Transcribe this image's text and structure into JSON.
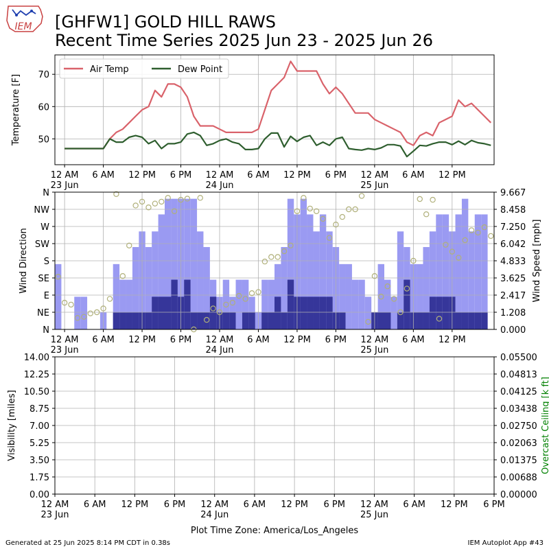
{
  "header": {
    "logo_text": "IEM",
    "title_line1": "[GHFW1] GOLD HILL RAWS",
    "title_line2": "Recent Time Series 2025 Jun 23 - 2025 Jun 26"
  },
  "footer": {
    "generated": "Generated at 25 Jun 2025 8:14 PM CDT in 0.38s",
    "app": "IEM Autoplot App #43",
    "timezone": "Plot Time Zone: America/Los_Angeles"
  },
  "colors": {
    "air_temp": "#d9626a",
    "dew_point": "#2e5e2e",
    "gust_bar": "#9a9af2",
    "speed_bar": "#36369a",
    "direction_marker": "#b0b07a",
    "ceiling_axis": "#008000"
  },
  "chart_data": [
    {
      "type": "line",
      "ylabel": "Temperature [F]",
      "ylim": [
        42,
        76
      ],
      "yticks": [
        50,
        60,
        70
      ],
      "grid": true,
      "legend_position": "top-left",
      "x_unit": "hours since 2025 Jun 23 00:00 America/Los_Angeles",
      "xlim": [
        -1.5,
        66.5
      ],
      "xtick_labels": [
        "12 AM\n23 Jun",
        "6 AM",
        "12 PM",
        "6 PM",
        "12 AM\n24 Jun",
        "6 AM",
        "12 PM",
        "6 PM",
        "12 AM\n25 Jun",
        "6 AM",
        "12 PM"
      ],
      "series": [
        {
          "name": "Air Temp",
          "x": [
            0,
            6,
            7,
            8,
            9,
            10,
            11,
            12,
            13,
            14,
            15,
            16,
            17,
            18,
            19,
            20,
            21,
            22,
            23,
            24,
            25,
            26,
            27,
            28,
            29,
            30,
            31,
            32,
            33,
            34,
            35,
            36,
            37,
            38,
            39,
            40,
            41,
            42,
            43,
            44,
            45,
            46,
            47,
            48,
            49,
            50,
            51,
            52,
            53,
            54,
            55,
            56,
            57,
            58,
            59,
            60,
            61,
            62,
            63,
            64,
            65,
            66
          ],
          "y": [
            47,
            47,
            50,
            52,
            53,
            55,
            57,
            59,
            60,
            65,
            63,
            67,
            67,
            66,
            63,
            57,
            54,
            54,
            54,
            53,
            52,
            52,
            52,
            52,
            52,
            53,
            59,
            65,
            67,
            69,
            74,
            71,
            71,
            71,
            71,
            67,
            64,
            66,
            64,
            61,
            58,
            58,
            58,
            56,
            55,
            54,
            53,
            52,
            49,
            48,
            51,
            52,
            51,
            55,
            56,
            57,
            62,
            60,
            61,
            59,
            57,
            55
          ]
        },
        {
          "name": "Dew Point",
          "x": [
            0,
            6,
            7,
            8,
            9,
            10,
            11,
            12,
            13,
            14,
            15,
            16,
            17,
            18,
            19,
            20,
            21,
            22,
            23,
            24,
            25,
            26,
            27,
            28,
            29,
            30,
            31,
            32,
            33,
            34,
            35,
            36,
            37,
            38,
            39,
            40,
            41,
            42,
            43,
            44,
            45,
            46,
            47,
            48,
            49,
            50,
            51,
            52,
            53,
            54,
            55,
            56,
            57,
            58,
            59,
            60,
            61,
            62,
            63,
            64,
            65,
            66
          ],
          "y": [
            47,
            47,
            50,
            49,
            49,
            50.5,
            51,
            50.5,
            48.5,
            49.5,
            47,
            48.5,
            48.5,
            49,
            51.5,
            52,
            51,
            48,
            48.5,
            49.5,
            50,
            49,
            48.5,
            46.7,
            46.7,
            47,
            50,
            51.8,
            51.8,
            47.5,
            50.8,
            49.2,
            50.5,
            51,
            48,
            49,
            48,
            50,
            50.5,
            47,
            46.7,
            46.5,
            47,
            46.7,
            47.2,
            48.2,
            48.2,
            47.8,
            44.5,
            46.2,
            48,
            47.8,
            48.5,
            49,
            49,
            48.2,
            49.3,
            48.2,
            49.5,
            48.8,
            48.5,
            48
          ]
        }
      ]
    },
    {
      "type": "bar",
      "ylabel": "Wind Direction",
      "y2label": "Wind Speed [mph]",
      "direction_ticks": [
        "N",
        "NE",
        "E",
        "SE",
        "S",
        "SW",
        "W",
        "NW",
        "N"
      ],
      "ylim_direction_deg": [
        0,
        360
      ],
      "ylim_speed_mph": [
        0,
        9.667
      ],
      "speed_ticks": [
        "0.000",
        "1.208",
        "2.417",
        "3.625",
        "4.833",
        "6.042",
        "7.250",
        "8.458",
        "9.667"
      ],
      "grid": true,
      "x_unit": "hours since 2025 Jun 23 00:00 America/Los_Angeles",
      "xlim": [
        -1.5,
        66.5
      ],
      "xtick_labels": [
        "12 AM\n23 Jun",
        "6 AM",
        "12 PM",
        "6 PM",
        "12 AM\n24 Jun",
        "6 AM",
        "12 PM",
        "6 PM",
        "12 AM\n25 Jun",
        "6 AM",
        "12 PM"
      ],
      "series": [
        {
          "name": "gust",
          "x": [
            -1,
            2,
            3,
            4,
            6,
            8,
            9,
            10,
            11,
            12,
            13,
            14,
            15,
            16,
            17,
            18,
            19,
            20,
            21,
            22,
            23,
            24,
            25,
            26,
            27,
            28,
            29,
            30,
            31,
            32,
            33,
            34,
            35,
            36,
            37,
            38,
            39,
            40,
            41,
            42,
            43,
            44,
            45,
            46,
            47,
            48,
            49,
            50,
            51,
            52,
            53,
            54,
            55,
            56,
            57,
            58,
            59,
            60,
            61,
            62,
            63,
            64,
            65
          ],
          "y": [
            4.6,
            2.3,
            2.3,
            0,
            1.2,
            4.6,
            3.5,
            3.5,
            5.8,
            6.9,
            5.8,
            6.9,
            8.1,
            9.2,
            9.2,
            9.2,
            9.2,
            9.2,
            6.9,
            5.8,
            3.5,
            2.3,
            3.5,
            2.3,
            3.5,
            3.5,
            2.3,
            1.2,
            3.5,
            3.5,
            4.6,
            5.8,
            9.2,
            8.1,
            9.2,
            8.1,
            6.9,
            8.1,
            6.9,
            5.8,
            4.6,
            4.6,
            3.5,
            3.5,
            2.3,
            1.2,
            4.6,
            3.5,
            2.3,
            6.9,
            5.8,
            4.6,
            4.6,
            5.8,
            6.9,
            8.1,
            8.1,
            6.9,
            8.1,
            9.2,
            6.9,
            8.1,
            8.1
          ]
        },
        {
          "name": "sustained",
          "x": [
            -1,
            2,
            3,
            4,
            6,
            8,
            9,
            10,
            11,
            12,
            13,
            14,
            15,
            16,
            17,
            18,
            19,
            20,
            21,
            22,
            23,
            24,
            25,
            26,
            27,
            28,
            29,
            30,
            31,
            32,
            33,
            34,
            35,
            36,
            37,
            38,
            39,
            40,
            41,
            42,
            43,
            44,
            45,
            46,
            47,
            48,
            49,
            50,
            51,
            52,
            53,
            54,
            55,
            56,
            57,
            58,
            59,
            60,
            61,
            62,
            63,
            64,
            65
          ],
          "y": [
            0,
            0,
            0,
            0,
            0,
            1.2,
            1.2,
            1.2,
            1.2,
            1.2,
            1.2,
            2.3,
            2.3,
            2.3,
            3.5,
            2.3,
            3.5,
            1.2,
            1.2,
            1.2,
            2.3,
            1.2,
            1.2,
            1.2,
            0,
            1.2,
            1.2,
            0,
            1.2,
            1.2,
            2.3,
            1.2,
            3.5,
            2.3,
            2.3,
            2.3,
            2.3,
            2.3,
            2.3,
            1.2,
            1.2,
            0,
            0,
            0,
            0,
            1.2,
            1.2,
            1.2,
            0,
            1.2,
            3.5,
            1.2,
            1.2,
            1.2,
            2.3,
            2.3,
            2.3,
            2.3,
            1.2,
            1.2,
            1.2,
            1.2,
            1.2
          ]
        },
        {
          "name": "direction",
          "x": [
            -1,
            0,
            1,
            2,
            3,
            4,
            5,
            6,
            7,
            8,
            9,
            10,
            11,
            12,
            13,
            14,
            15,
            16,
            17,
            18,
            19,
            20,
            21,
            22,
            23,
            24,
            25,
            26,
            27,
            28,
            29,
            30,
            31,
            32,
            33,
            34,
            35,
            36,
            37,
            38,
            39,
            40,
            41,
            42,
            43,
            44,
            45,
            46,
            47,
            48,
            49,
            50,
            51,
            52,
            53,
            54,
            55,
            56,
            57,
            58,
            59,
            60,
            61,
            62,
            63,
            64,
            65,
            66
          ],
          "y": [
            138,
            70,
            65,
            30,
            33,
            42,
            45,
            55,
            80,
            355,
            140,
            220,
            325,
            335,
            320,
            330,
            335,
            345,
            310,
            340,
            343,
            0,
            345,
            25,
            55,
            45,
            65,
            70,
            88,
            80,
            95,
            98,
            178,
            190,
            190,
            205,
            220,
            310,
            345,
            317,
            310,
            290,
            240,
            275,
            295,
            315,
            315,
            350,
            20,
            140,
            86,
            113,
            80,
            45,
            107,
            180,
            342,
            302,
            340,
            28,
            222,
            204,
            188,
            234,
            260,
            254,
            268,
            245
          ]
        }
      ]
    },
    {
      "type": "line",
      "ylabel": "Visibility [miles]",
      "y2label": "Overcast Ceiling [k ft]",
      "ylim": [
        0,
        14
      ],
      "y2lim": [
        0,
        0.055
      ],
      "yticks": [
        "0.00",
        "1.75",
        "3.50",
        "5.25",
        "7.00",
        "8.75",
        "10.50",
        "12.25",
        "14.00"
      ],
      "y2ticks": [
        "0.00000",
        "0.00688",
        "0.01375",
        "0.02063",
        "0.02750",
        "0.03438",
        "0.04125",
        "0.04813",
        "0.05500"
      ],
      "grid": true,
      "xlabel": "Plot Time Zone: America/Los_Angeles",
      "xtick_labels": [
        "12 AM\n23 Jun",
        "6 AM",
        "12 PM",
        "6 PM",
        "12 AM\n24 Jun",
        "6 AM",
        "12 PM",
        "6 PM",
        "12 AM\n25 Jun",
        "6 AM",
        "12 PM",
        "6 PM"
      ],
      "series": []
    }
  ]
}
